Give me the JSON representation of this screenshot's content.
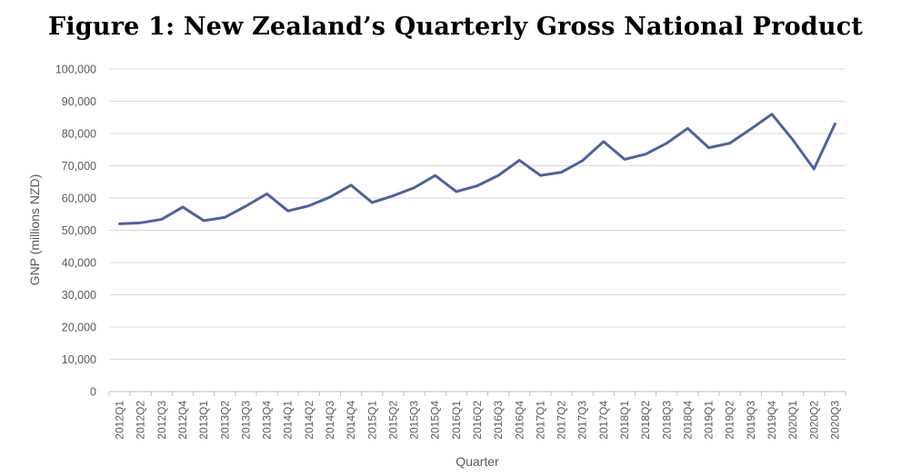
{
  "chart_data": {
    "type": "line",
    "title": "Figure 1: New Zealand’s Quarterly Gross National Product",
    "xlabel": "Quarter",
    "ylabel": "GNP (millions NZD)",
    "ylim": [
      0,
      100000
    ],
    "yticks": [
      "0",
      "10,000",
      "20,000",
      "30,000",
      "40,000",
      "50,000",
      "60,000",
      "70,000",
      "80,000",
      "90,000",
      "100,000"
    ],
    "grid": true,
    "line_color": "#4a62a0",
    "categories": [
      "2012Q1",
      "2012Q2",
      "2012Q3",
      "2012Q4",
      "2013Q1",
      "2013Q2",
      "2013Q3",
      "2013Q4",
      "2014Q1",
      "2014Q2",
      "2014Q3",
      "2014Q4",
      "2015Q1",
      "2015Q2",
      "2015Q3",
      "2015Q4",
      "2016Q1",
      "2016Q2",
      "2016Q3",
      "2016Q4",
      "2017Q1",
      "2017Q2",
      "2017Q3",
      "2017Q4",
      "2018Q1",
      "2018Q2",
      "2018Q3",
      "2018Q4",
      "2019Q1",
      "2019Q2",
      "2019Q3",
      "2019Q4",
      "2020Q1",
      "2020Q2",
      "2020Q3"
    ],
    "values": [
      52000,
      52300,
      53400,
      57200,
      53000,
      54000,
      57500,
      61300,
      56000,
      57600,
      60300,
      64000,
      58600,
      60700,
      63200,
      67000,
      62000,
      63800,
      67000,
      71700,
      67000,
      68000,
      71600,
      77500,
      72000,
      73600,
      77000,
      81600,
      75600,
      77000,
      81400,
      86000,
      78000,
      69000,
      83000
    ]
  }
}
